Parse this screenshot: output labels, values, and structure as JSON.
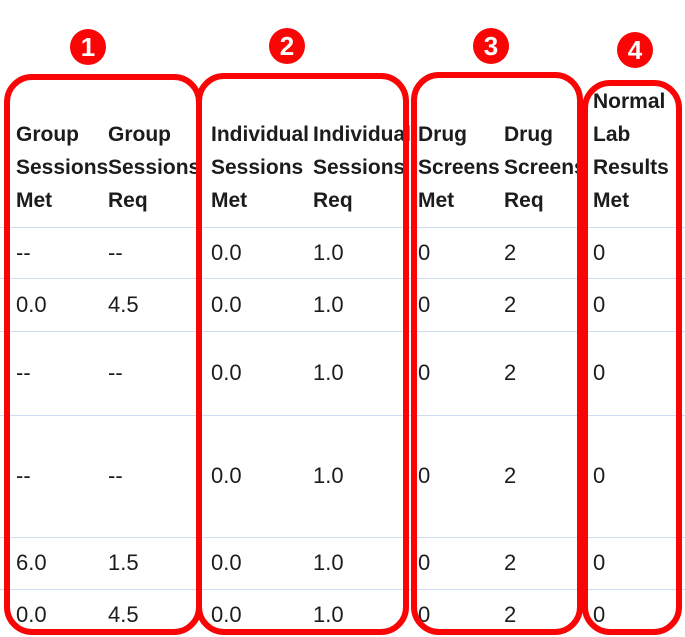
{
  "colors": {
    "annotation_red": "#fa0505",
    "row_divider_blue": "#cfdcf3",
    "text": "#1c1c1c",
    "background": "#ffffff"
  },
  "annotations": {
    "badges": [
      {
        "label": "1"
      },
      {
        "label": "2"
      },
      {
        "label": "3"
      },
      {
        "label": "4"
      }
    ]
  },
  "table": {
    "columns": [
      {
        "id": "group-sessions-met",
        "header_text": "Group\nSessions\nMet"
      },
      {
        "id": "group-sessions-req",
        "header_text": "Group\nSessions\nReq"
      },
      {
        "id": "individual-sessions-met",
        "header_text": "Individual\nSessions\nMet"
      },
      {
        "id": "individual-sessions-req",
        "header_text": "Individual\nSessions\nReq"
      },
      {
        "id": "drug-screens-met",
        "header_text": "Drug\nScreens\nMet"
      },
      {
        "id": "drug-screens-req",
        "header_text": "Drug\nScreens\nReq"
      },
      {
        "id": "normal-lab-results-met",
        "header_text": "Normal\nLab\nResults\nMet"
      }
    ],
    "rows": [
      {
        "cells": [
          "--",
          "--",
          "0.0",
          "1.0",
          "0",
          "2",
          "0"
        ]
      },
      {
        "cells": [
          "0.0",
          "4.5",
          "0.0",
          "1.0",
          "0",
          "2",
          "0"
        ]
      },
      {
        "cells": [
          "--",
          "--",
          "0.0",
          "1.0",
          "0",
          "2",
          "0"
        ]
      },
      {
        "cells": [
          "--",
          "--",
          "0.0",
          "1.0",
          "0",
          "2",
          "0"
        ]
      },
      {
        "cells": [
          "6.0",
          "1.5",
          "0.0",
          "1.0",
          "0",
          "2",
          "0"
        ]
      },
      {
        "cells": [
          "0.0",
          "4.5",
          "0.0",
          "1.0",
          "0",
          "2",
          "0"
        ]
      }
    ]
  }
}
